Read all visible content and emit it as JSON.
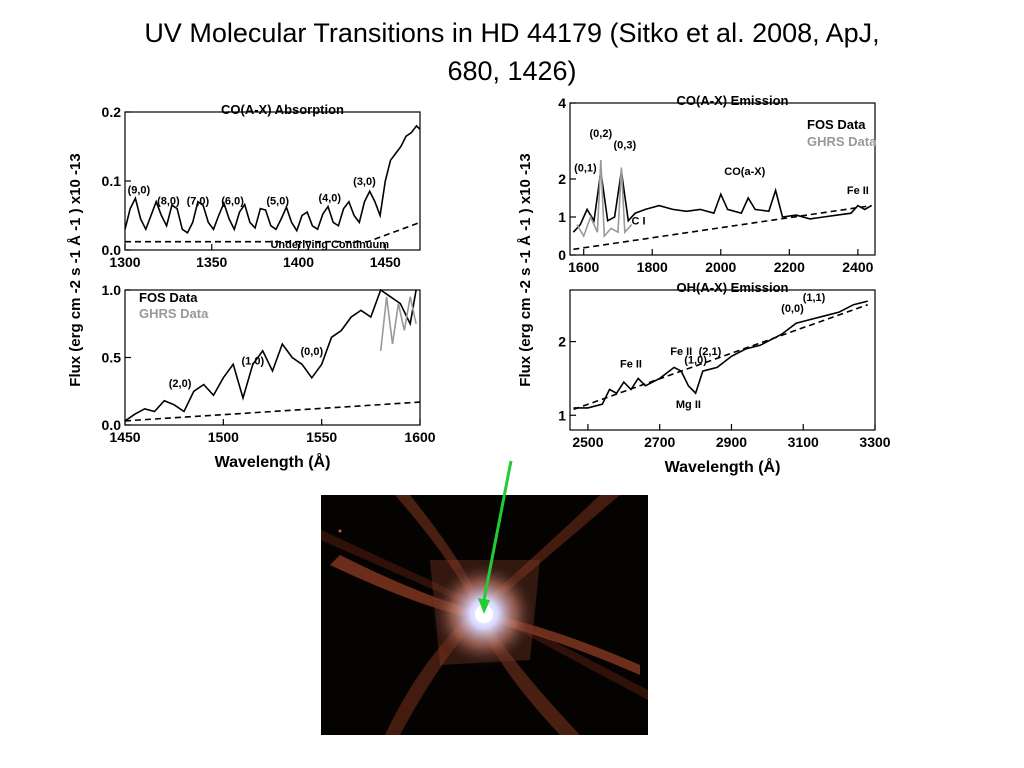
{
  "slide": {
    "title_line1": "UV Molecular Transitions in HD 44179 (Sitko et al. 2008, ApJ,",
    "title_line2": "680, 1426)"
  },
  "colors": {
    "fos": "#000000",
    "ghrs": "#999999",
    "arrow": "#22cc33",
    "nebula_core": "#d8d8ff",
    "nebula_glow": "#b2462a"
  },
  "nebula": {
    "image_description": "Red Rectangle nebula (Hubble image) with green arrow pointing to central star"
  },
  "shared_labels": {
    "left_ylabel": "Flux (erg cm -2 s -1 Å -1 ) x10 -13",
    "right_ylabel": "Flux (erg cm -2 s -1 Å -1 ) x10 -13",
    "xlabel_left": "Wavelength (Å)",
    "xlabel_right": "Wavelength (Å)"
  },
  "chart_data": [
    {
      "id": "co-absorption",
      "type": "line",
      "title": "CO(A-X) Absorption",
      "xlim": [
        1300,
        1470
      ],
      "ylim": [
        0,
        0.2
      ],
      "ytick_labels": [
        "0.0",
        "0.1",
        "0.2"
      ],
      "yticks": [
        0,
        0.1,
        0.2
      ],
      "xticks": [
        1300,
        1350,
        1400,
        1450
      ],
      "xtick_labels": [
        "1300",
        "1350",
        "1400",
        "1450"
      ],
      "series": [
        {
          "style": "solid",
          "color": "#000000",
          "x": [
            1300,
            1303,
            1306,
            1309,
            1312,
            1315,
            1318,
            1321,
            1324,
            1327,
            1330,
            1333,
            1336,
            1339,
            1342,
            1345,
            1348,
            1351,
            1354,
            1357,
            1360,
            1363,
            1366,
            1369,
            1372,
            1375,
            1378,
            1381,
            1384,
            1387,
            1390,
            1393,
            1396,
            1399,
            1402,
            1405,
            1408,
            1411,
            1414,
            1417,
            1420,
            1423,
            1426,
            1429,
            1432,
            1435,
            1438,
            1441,
            1444,
            1447,
            1450,
            1453,
            1456,
            1459,
            1462,
            1465,
            1468,
            1470
          ],
          "y": [
            0.03,
            0.06,
            0.075,
            0.045,
            0.03,
            0.05,
            0.07,
            0.05,
            0.035,
            0.065,
            0.06,
            0.03,
            0.025,
            0.04,
            0.07,
            0.065,
            0.04,
            0.03,
            0.05,
            0.068,
            0.045,
            0.03,
            0.055,
            0.066,
            0.04,
            0.032,
            0.06,
            0.058,
            0.035,
            0.03,
            0.045,
            0.062,
            0.04,
            0.028,
            0.05,
            0.055,
            0.035,
            0.03,
            0.052,
            0.063,
            0.04,
            0.035,
            0.06,
            0.07,
            0.05,
            0.04,
            0.07,
            0.085,
            0.07,
            0.05,
            0.1,
            0.13,
            0.14,
            0.15,
            0.165,
            0.17,
            0.18,
            0.175
          ]
        },
        {
          "name": "Underlying Continuum",
          "style": "dashed",
          "color": "#000000",
          "x": [
            1300,
            1440,
            1470
          ],
          "y": [
            0.012,
            0.012,
            0.04
          ]
        }
      ],
      "annotations": [
        {
          "text": "(9,0)",
          "x": 1308,
          "y": 0.082
        },
        {
          "text": "(8,0)",
          "x": 1325,
          "y": 0.066
        },
        {
          "text": "(7,0)",
          "x": 1342,
          "y": 0.066
        },
        {
          "text": "(6,0)",
          "x": 1362,
          "y": 0.066
        },
        {
          "text": "(5,0)",
          "x": 1388,
          "y": 0.066
        },
        {
          "text": "(4,0)",
          "x": 1418,
          "y": 0.07
        },
        {
          "text": "(3,0)",
          "x": 1438,
          "y": 0.094
        },
        {
          "text": "Underlying Continuum",
          "x": 1418,
          "y": 0.003
        }
      ]
    },
    {
      "id": "co-absorption-lower",
      "type": "line",
      "xlim": [
        1450,
        1600
      ],
      "ylim": [
        0,
        1.0
      ],
      "yticks": [
        0,
        0.5,
        1.0
      ],
      "ytick_labels": [
        "0.0",
        "0.5",
        "1.0"
      ],
      "xticks": [
        1450,
        1500,
        1550,
        1600
      ],
      "xtick_labels": [
        "1450",
        "1500",
        "1550",
        "1600"
      ],
      "xlabel": "Wavelength (Å)",
      "legend": [
        {
          "name": "FOS Data",
          "color": "#000000"
        },
        {
          "name": "GHRS Data",
          "color": "#999999"
        }
      ],
      "series": [
        {
          "name": "FOS Data",
          "style": "solid",
          "color": "#000000",
          "x": [
            1450,
            1455,
            1460,
            1465,
            1470,
            1475,
            1480,
            1485,
            1490,
            1495,
            1500,
            1505,
            1510,
            1515,
            1520,
            1525,
            1530,
            1535,
            1540,
            1545,
            1550,
            1555,
            1560,
            1565,
            1570,
            1575,
            1580,
            1585,
            1590,
            1595,
            1598
          ],
          "y": [
            0.03,
            0.08,
            0.12,
            0.1,
            0.18,
            0.15,
            0.1,
            0.25,
            0.3,
            0.22,
            0.35,
            0.45,
            0.2,
            0.45,
            0.55,
            0.4,
            0.6,
            0.5,
            0.45,
            0.35,
            0.45,
            0.65,
            0.7,
            0.8,
            0.85,
            0.8,
            1.0,
            0.95,
            0.9,
            0.75,
            1.0
          ]
        },
        {
          "name": "GHRS Data",
          "style": "solid",
          "color": "#999999",
          "x": [
            1580,
            1583,
            1586,
            1589,
            1592,
            1595,
            1598
          ],
          "y": [
            0.55,
            0.95,
            0.6,
            0.9,
            0.7,
            0.95,
            0.75
          ]
        },
        {
          "style": "dashed",
          "color": "#000000",
          "x": [
            1450,
            1600
          ],
          "y": [
            0.03,
            0.17
          ]
        }
      ],
      "annotations": [
        {
          "text": "(2,0)",
          "x": 1478,
          "y": 0.28
        },
        {
          "text": "(1,0)",
          "x": 1515,
          "y": 0.45
        },
        {
          "text": "(0,0)",
          "x": 1545,
          "y": 0.52
        }
      ]
    },
    {
      "id": "co-emission",
      "type": "line",
      "title": "CO(A-X) Emission",
      "xlim": [
        1560,
        2450
      ],
      "ylim": [
        0,
        4
      ],
      "yticks": [
        0,
        1,
        2,
        4
      ],
      "ytick_labels": [
        "0",
        "1",
        "2",
        "4"
      ],
      "xticks": [
        1600,
        1800,
        2000,
        2200,
        2400
      ],
      "xtick_labels": [
        "1600",
        "1800",
        "2000",
        "2200",
        "2400"
      ],
      "legend": [
        {
          "name": "FOS Data",
          "color": "#000000"
        },
        {
          "name": "GHRS Data",
          "color": "#999999"
        }
      ],
      "series": [
        {
          "name": "FOS Data",
          "style": "solid",
          "color": "#000000",
          "x": [
            1570,
            1590,
            1610,
            1630,
            1650,
            1670,
            1690,
            1710,
            1730,
            1750,
            1780,
            1820,
            1860,
            1900,
            1940,
            1980,
            2000,
            2020,
            2060,
            2080,
            2100,
            2140,
            2160,
            2180,
            2220,
            2260,
            2300,
            2340,
            2380,
            2400,
            2420,
            2440
          ],
          "y": [
            0.6,
            0.8,
            1.2,
            0.9,
            2.2,
            0.9,
            1.0,
            2.2,
            0.9,
            1.1,
            1.2,
            1.3,
            1.2,
            1.15,
            1.2,
            1.1,
            1.6,
            1.2,
            1.1,
            1.5,
            1.2,
            1.15,
            1.7,
            1.0,
            1.05,
            0.95,
            1.0,
            1.05,
            1.1,
            1.3,
            1.2,
            1.3
          ]
        },
        {
          "name": "GHRS Data",
          "style": "solid",
          "color": "#999999",
          "x": [
            1580,
            1600,
            1620,
            1640,
            1650,
            1660,
            1680,
            1700,
            1710,
            1720,
            1740
          ],
          "y": [
            0.8,
            0.5,
            1.0,
            0.6,
            2.5,
            0.5,
            0.7,
            0.6,
            2.3,
            0.6,
            0.8
          ]
        },
        {
          "style": "dashed",
          "color": "#000000",
          "x": [
            1570,
            2440
          ],
          "y": [
            0.15,
            1.3
          ]
        }
      ],
      "annotations": [
        {
          "text": "(0,1)",
          "x": 1605,
          "y": 2.2
        },
        {
          "text": "(0,2)",
          "x": 1650,
          "y": 3.1
        },
        {
          "text": "(0,3)",
          "x": 1720,
          "y": 2.8
        },
        {
          "text": "CO(a-X)",
          "x": 2070,
          "y": 2.1
        },
        {
          "text": "C I",
          "x": 1760,
          "y": 0.8
        },
        {
          "text": "Fe II",
          "x": 2400,
          "y": 1.6
        }
      ]
    },
    {
      "id": "oh-emission",
      "type": "line",
      "title": "OH(A-X) Emission",
      "xlim": [
        2450,
        3300
      ],
      "ylim": [
        0.8,
        2.7
      ],
      "yticks": [
        1,
        2
      ],
      "ytick_labels": [
        "1",
        "2"
      ],
      "xticks": [
        2500,
        2700,
        2900,
        3100,
        3300
      ],
      "xtick_labels": [
        "2500",
        "2700",
        "2900",
        "3100",
        "3300"
      ],
      "xlabel": "Wavelength (Å)",
      "series": [
        {
          "style": "solid",
          "color": "#000000",
          "x": [
            2460,
            2500,
            2540,
            2560,
            2580,
            2600,
            2620,
            2640,
            2660,
            2700,
            2740,
            2760,
            2780,
            2800,
            2820,
            2860,
            2900,
            2940,
            2980,
            3000,
            3040,
            3080,
            3120,
            3160,
            3200,
            3240,
            3280
          ],
          "y": [
            1.1,
            1.1,
            1.15,
            1.35,
            1.3,
            1.45,
            1.35,
            1.5,
            1.4,
            1.5,
            1.65,
            1.6,
            1.4,
            1.3,
            1.6,
            1.65,
            1.8,
            1.9,
            1.95,
            2.0,
            2.1,
            2.25,
            2.3,
            2.35,
            2.4,
            2.5,
            2.55
          ]
        },
        {
          "style": "dashed",
          "color": "#000000",
          "x": [
            2460,
            3280
          ],
          "y": [
            1.08,
            2.5
          ]
        }
      ],
      "annotations": [
        {
          "text": "Fe II",
          "x": 2620,
          "y": 1.65
        },
        {
          "text": "Fe II",
          "x": 2760,
          "y": 1.82
        },
        {
          "text": "(2,1)",
          "x": 2840,
          "y": 1.82
        },
        {
          "text": "(1,0)",
          "x": 2800,
          "y": 1.7
        },
        {
          "text": "Mg II",
          "x": 2780,
          "y": 1.1
        },
        {
          "text": "(0,0)",
          "x": 3070,
          "y": 2.4
        },
        {
          "text": "(1,1)",
          "x": 3130,
          "y": 2.55
        }
      ]
    }
  ]
}
